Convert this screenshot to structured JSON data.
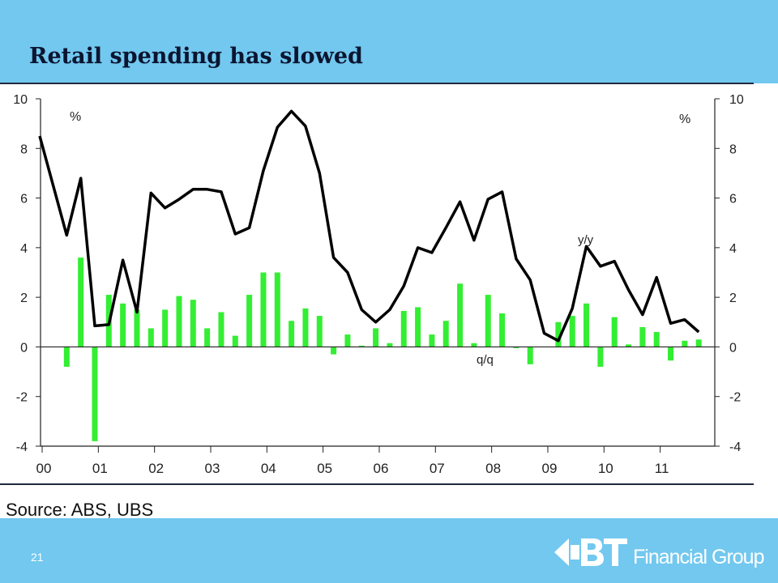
{
  "slide": {
    "title": "Retail spending has slowed",
    "source": "Source: ABS, UBS",
    "page_number": "21"
  },
  "brand": {
    "text": "Financial Group",
    "logo_text": "BT",
    "color": "#ffffff"
  },
  "colors": {
    "header_bg": "#72c8ef",
    "bar": "#33ee33",
    "line": "#000000"
  },
  "chart_data": {
    "type": "bar",
    "title": "",
    "xlabel": "",
    "ylabel": "%",
    "y2label": "%",
    "ylim": [
      -4,
      10
    ],
    "yticks": [
      -4,
      -2,
      0,
      2,
      4,
      6,
      8,
      10
    ],
    "x_tick_labels": [
      "00",
      "01",
      "02",
      "03",
      "04",
      "05",
      "06",
      "07",
      "08",
      "09",
      "10",
      "11"
    ],
    "grid": false,
    "legend": "none",
    "annotations": {
      "line": "y/y",
      "bars": "q/q"
    },
    "series": [
      {
        "name": "q/q",
        "type": "bar",
        "values": [
          -0.8,
          3.6,
          -3.8,
          2.1,
          1.75,
          1.5,
          0.75,
          1.5,
          2.05,
          1.9,
          0.75,
          1.4,
          0.45,
          2.1,
          3.0,
          3.0,
          1.05,
          1.55,
          1.25,
          -0.3,
          0.5,
          0.05,
          0.75,
          0.15,
          1.45,
          1.6,
          0.5,
          1.05,
          2.55,
          0.15,
          2.1,
          1.35,
          -0.05,
          -0.7,
          0.0,
          1.0,
          1.25,
          1.75,
          -0.8,
          1.2,
          0.1,
          0.8,
          0.6,
          -0.55,
          0.25,
          0.3
        ]
      },
      {
        "name": "y/y",
        "type": "line",
        "values": [
          8.5,
          4.5,
          6.8,
          0.85,
          0.9,
          3.5,
          1.4,
          6.2,
          5.6,
          5.95,
          6.35,
          6.35,
          6.25,
          4.55,
          4.8,
          7.1,
          8.85,
          9.5,
          8.9,
          7.0,
          3.6,
          3.0,
          1.5,
          1.0,
          1.5,
          2.45,
          4.0,
          3.8,
          4.8,
          5.85,
          4.3,
          5.95,
          6.25,
          3.55,
          2.7,
          0.55,
          0.25,
          1.55,
          4.05,
          3.25,
          3.45,
          2.3,
          1.3,
          2.8,
          0.95,
          1.1,
          0.6
        ]
      }
    ]
  }
}
